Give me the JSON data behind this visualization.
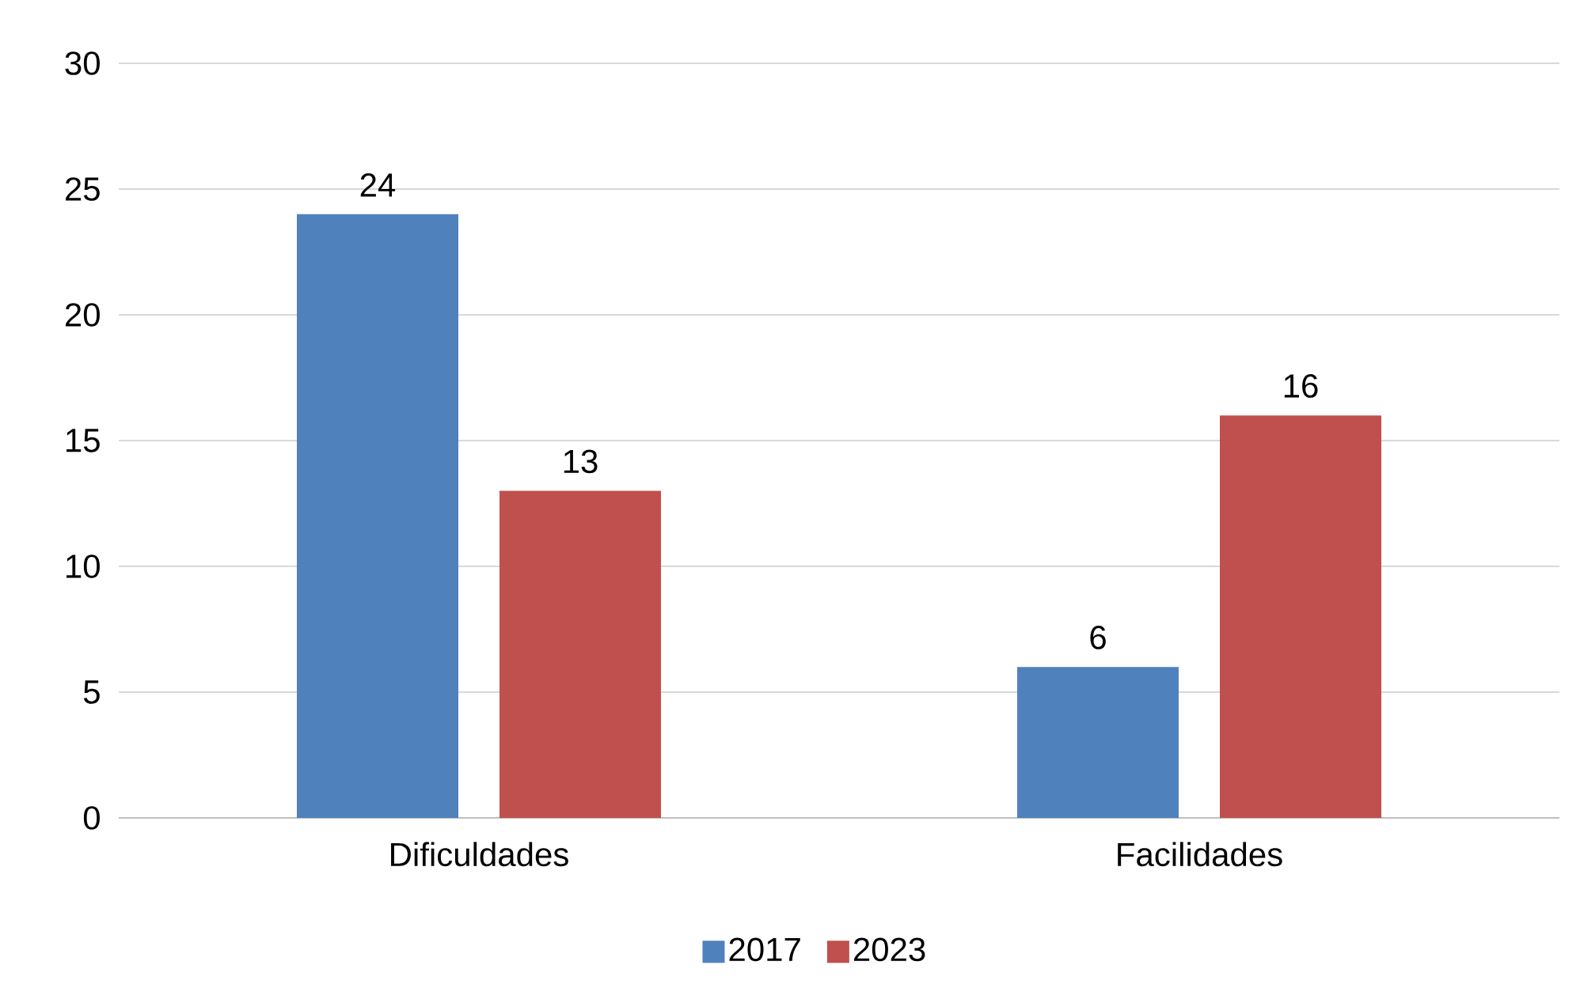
{
  "chart_data": {
    "type": "bar",
    "categories": [
      "Dificuldades",
      "Facilidades"
    ],
    "series": [
      {
        "name": "2017",
        "color": "#4f81bd",
        "values": [
          24,
          6
        ]
      },
      {
        "name": "2023",
        "color": "#c0504d",
        "values": [
          13,
          16
        ]
      }
    ],
    "ylim": [
      0,
      30
    ],
    "yticks": [
      0,
      5,
      10,
      15,
      20,
      25,
      30
    ],
    "grid": "y",
    "legend": "bottom",
    "data_labels": true
  }
}
